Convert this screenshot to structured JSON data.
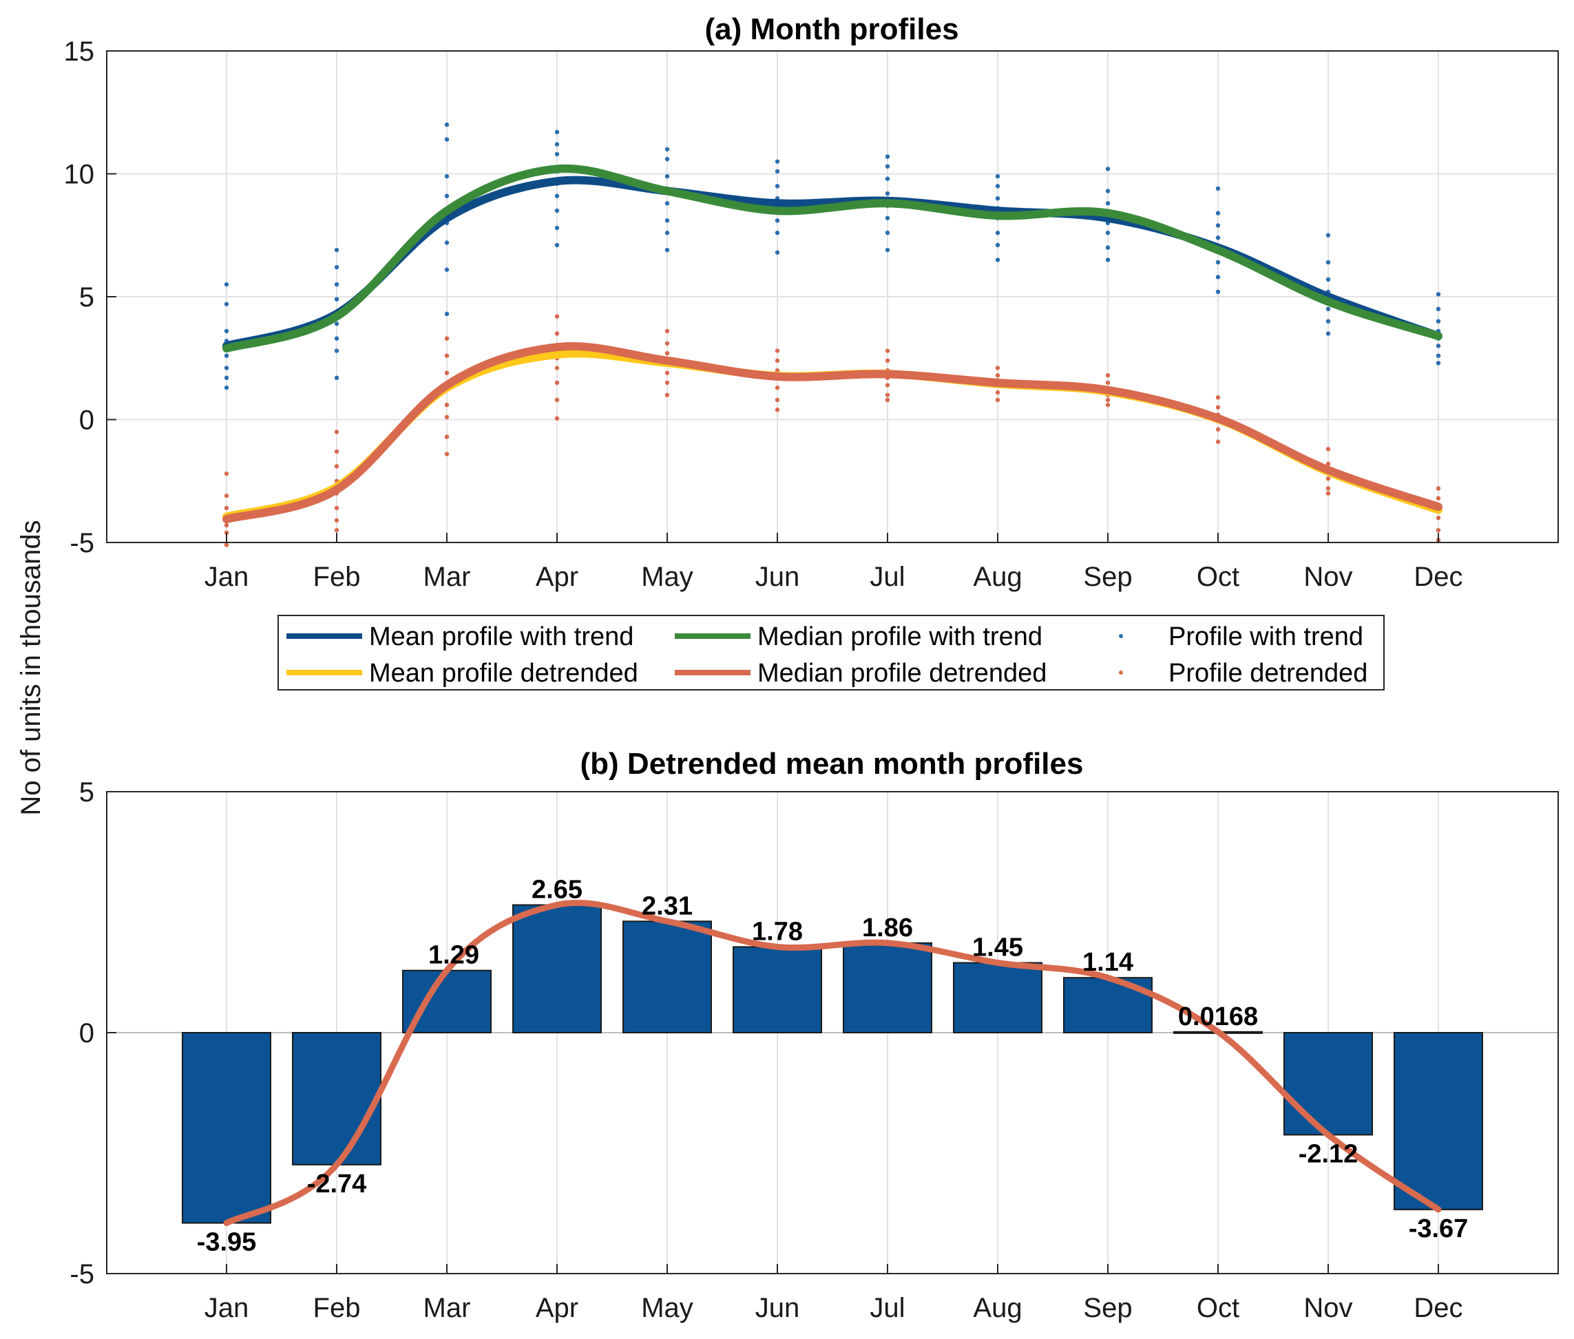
{
  "figure": {
    "ylabel": "No of units in thousands",
    "colors": {
      "mean_trend": "#0e4c88",
      "median_trend": "#3a8a3a",
      "mean_detrended": "#ffc81a",
      "median_detrended": "#d86a4f",
      "bar": "#0b5394"
    }
  },
  "chart_data": [
    {
      "id": "a",
      "type": "line",
      "title": "(a) Month profiles",
      "xlabel": "",
      "ylabel": "No of units in thousands",
      "categories": [
        "Jan",
        "Feb",
        "Mar",
        "Apr",
        "May",
        "Jun",
        "Jul",
        "Aug",
        "Sep",
        "Oct",
        "Nov",
        "Dec"
      ],
      "ylim": [
        -5,
        15
      ],
      "yticks": [
        -5,
        0,
        5,
        10,
        15
      ],
      "grid": true,
      "legend_position": "bottom-outside",
      "series": [
        {
          "name": "Mean profile with trend",
          "style": "line",
          "color": "#0e4c88",
          "values": [
            3.0,
            4.3,
            8.2,
            9.7,
            9.3,
            8.8,
            8.9,
            8.5,
            8.2,
            7.0,
            5.0,
            3.4
          ]
        },
        {
          "name": "Median profile with trend",
          "style": "line",
          "color": "#3a8a3a",
          "values": [
            2.9,
            4.2,
            8.5,
            10.2,
            9.3,
            8.5,
            8.8,
            8.3,
            8.4,
            6.9,
            4.8,
            3.4
          ]
        },
        {
          "name": "Profile with trend",
          "style": "points",
          "color": "#2b6fb0",
          "values": [
            [
              5.5,
              4.7,
              3.6,
              3.2,
              2.9,
              2.6,
              2.1,
              1.7,
              1.3
            ],
            [
              6.9,
              6.2,
              5.5,
              4.9,
              4.3,
              3.9,
              3.3,
              2.8,
              1.7
            ],
            [
              12.0,
              11.4,
              9.9,
              9.1,
              8.4,
              8.0,
              7.2,
              6.1,
              4.3
            ],
            [
              11.7,
              11.2,
              10.8,
              10.1,
              9.6,
              9.1,
              8.5,
              7.8,
              7.1
            ],
            [
              11.0,
              10.6,
              9.9,
              9.4,
              8.8,
              8.1,
              7.6,
              6.9
            ],
            [
              10.5,
              10.1,
              9.5,
              9.0,
              8.5,
              8.1,
              7.6,
              6.8
            ],
            [
              10.7,
              10.3,
              9.8,
              9.2,
              8.7,
              8.2,
              7.6,
              6.9
            ],
            [
              9.9,
              9.5,
              9.0,
              8.6,
              8.2,
              7.6,
              7.1,
              6.5
            ],
            [
              10.2,
              9.3,
              8.8,
              8.4,
              8.0,
              7.6,
              7.0,
              6.5
            ],
            [
              9.4,
              8.4,
              7.9,
              7.4,
              7.0,
              6.4,
              5.8,
              5.2
            ],
            [
              7.5,
              6.4,
              5.7,
              5.2,
              4.9,
              4.5,
              4.0,
              3.5
            ],
            [
              5.1,
              4.5,
              4.0,
              3.6,
              3.3,
              3.0,
              2.6,
              2.3
            ]
          ]
        },
        {
          "name": "Mean profile detrended",
          "style": "line",
          "color": "#ffc81a",
          "values": [
            -3.95,
            -2.74,
            1.29,
            2.65,
            2.31,
            1.78,
            1.86,
            1.45,
            1.14,
            0.0168,
            -2.12,
            -3.67
          ]
        },
        {
          "name": "Median profile detrended",
          "style": "line",
          "color": "#d86a4f",
          "values": [
            -4.05,
            -2.85,
            1.4,
            2.95,
            2.4,
            1.75,
            1.85,
            1.5,
            1.2,
            0.05,
            -2.05,
            -3.55
          ]
        },
        {
          "name": "Profile detrended",
          "style": "points",
          "color": "#d86a4f",
          "values": [
            [
              -2.2,
              -3.1,
              -3.6,
              -4.0,
              -4.3,
              -4.6,
              -5.1
            ],
            [
              -0.5,
              -1.3,
              -1.9,
              -2.5,
              -3.0,
              -3.6,
              -4.1,
              -4.5
            ],
            [
              3.3,
              2.6,
              1.9,
              1.3,
              0.6,
              0.1,
              -0.7,
              -1.4
            ],
            [
              4.2,
              3.5,
              2.9,
              2.5,
              2.1,
              1.5,
              0.8,
              0.05
            ],
            [
              3.6,
              3.1,
              2.7,
              2.3,
              1.9,
              1.5,
              1.0
            ],
            [
              2.8,
              2.4,
              2.0,
              1.7,
              1.3,
              0.8,
              0.4
            ],
            [
              2.8,
              2.4,
              2.0,
              1.7,
              1.4,
              1.0,
              0.8
            ],
            [
              2.1,
              1.8,
              1.6,
              1.4,
              1.1,
              0.8
            ],
            [
              1.8,
              1.5,
              1.2,
              1.0,
              0.8,
              0.6
            ],
            [
              0.9,
              0.5,
              0.2,
              0.0,
              -0.4,
              -0.9
            ],
            [
              -1.2,
              -1.8,
              -2.1,
              -2.4,
              -2.8,
              -3.0
            ],
            [
              -2.8,
              -3.2,
              -3.6,
              -4.0,
              -4.5,
              -4.9
            ]
          ]
        }
      ]
    },
    {
      "id": "b",
      "type": "bar",
      "title": "(b) Detrended mean month profiles",
      "xlabel": "",
      "ylabel": "No of units in thousands",
      "categories": [
        "Jan",
        "Feb",
        "Mar",
        "Apr",
        "May",
        "Jun",
        "Jul",
        "Aug",
        "Sep",
        "Oct",
        "Nov",
        "Dec"
      ],
      "ylim": [
        -5,
        5
      ],
      "yticks": [
        -5,
        0,
        5
      ],
      "grid": true,
      "values": [
        -3.95,
        -2.74,
        1.29,
        2.65,
        2.31,
        1.78,
        1.86,
        1.45,
        1.14,
        0.0168,
        -2.12,
        -3.67
      ],
      "value_labels": [
        "-3.95",
        "-2.74",
        "1.29",
        "2.65",
        "2.31",
        "1.78",
        "1.86",
        "1.45",
        "1.14",
        "0.0168",
        "-2.12",
        "-3.67"
      ],
      "overlay": {
        "name": "Detrended mean profile",
        "style": "line",
        "color": "#d86a4f",
        "values": [
          -3.95,
          -2.74,
          1.29,
          2.65,
          2.31,
          1.78,
          1.86,
          1.45,
          1.14,
          0.0168,
          -2.12,
          -3.67
        ]
      }
    }
  ]
}
